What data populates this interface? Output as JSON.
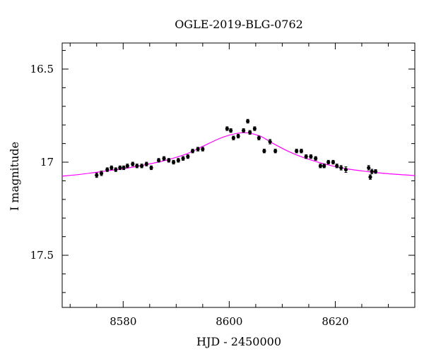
{
  "chart_data": {
    "type": "scatter",
    "title": "OGLE-2019-BLG-0762",
    "xlabel": "HJD - 2450000",
    "ylabel": "I magnitude",
    "xlim": [
      8568.5,
      8635
    ],
    "ylim": [
      16.36,
      17.78
    ],
    "y_inverted": true,
    "grid": false,
    "x_major_ticks": [
      8580,
      8600,
      8620
    ],
    "x_major_tick_labels": [
      "8580",
      "8600",
      "8620"
    ],
    "x_minor_step": 5,
    "y_major_ticks": [
      16.5,
      17,
      17.5
    ],
    "y_major_tick_labels": [
      "16.5",
      "17",
      "17.5"
    ],
    "y_minor_step": 0.1,
    "colors": {
      "data": "#000000",
      "model": "#ff00ff"
    },
    "series": [
      {
        "kind": "points",
        "x": [
          8575.0,
          8575.9,
          8577.0,
          8577.8,
          8578.6,
          8579.4,
          8580.1,
          8580.8,
          8581.8,
          8582.6,
          8583.5,
          8584.4,
          8585.3,
          8586.7,
          8587.7,
          8588.6,
          8589.5,
          8590.4,
          8591.3,
          8592.2,
          8593.1,
          8594.1,
          8595.0,
          8599.6,
          8600.3,
          8600.8,
          8601.7,
          8602.7,
          8603.5,
          8603.9,
          8604.8,
          8605.6,
          8606.6,
          8607.7,
          8608.7,
          8612.7,
          8613.6,
          8614.5,
          8615.4,
          8616.3,
          8617.2,
          8617.9,
          8618.7,
          8619.6,
          8620.3,
          8621.1,
          8622.0,
          8626.3,
          8626.6,
          8626.9,
          8627.6
        ],
        "y": [
          17.07,
          17.06,
          17.04,
          17.03,
          17.04,
          17.03,
          17.03,
          17.02,
          17.01,
          17.02,
          17.02,
          17.01,
          17.03,
          16.99,
          16.98,
          16.99,
          17.0,
          16.99,
          16.98,
          16.97,
          16.94,
          16.93,
          16.93,
          16.82,
          16.83,
          16.87,
          16.86,
          16.83,
          16.78,
          16.84,
          16.82,
          16.87,
          16.94,
          16.89,
          16.94,
          16.94,
          16.94,
          16.97,
          16.97,
          16.98,
          17.02,
          17.02,
          17.0,
          17.0,
          17.02,
          17.03,
          17.04,
          17.03,
          17.08,
          17.05,
          17.05
        ],
        "yerr": [
          0.012,
          0.012,
          0.01,
          0.01,
          0.01,
          0.01,
          0.01,
          0.01,
          0.01,
          0.01,
          0.01,
          0.01,
          0.01,
          0.01,
          0.01,
          0.01,
          0.01,
          0.01,
          0.01,
          0.01,
          0.01,
          0.01,
          0.01,
          0.01,
          0.01,
          0.01,
          0.01,
          0.01,
          0.01,
          0.01,
          0.01,
          0.01,
          0.01,
          0.012,
          0.01,
          0.01,
          0.01,
          0.01,
          0.01,
          0.01,
          0.01,
          0.01,
          0.01,
          0.01,
          0.01,
          0.012,
          0.015,
          0.012,
          0.012,
          0.012,
          0.01
        ]
      },
      {
        "kind": "model-curve",
        "x": [
          8568.5,
          8572,
          8576,
          8580,
          8584,
          8588,
          8592,
          8595,
          8598,
          8600,
          8602,
          8603,
          8604,
          8606,
          8608,
          8611,
          8614,
          8618,
          8622,
          8626,
          8630,
          8635
        ],
        "y": [
          17.075,
          17.065,
          17.05,
          17.035,
          17.015,
          16.99,
          16.955,
          16.915,
          16.875,
          16.855,
          16.843,
          16.842,
          16.845,
          16.862,
          16.895,
          16.94,
          16.975,
          17.01,
          17.035,
          17.05,
          17.062,
          17.072
        ]
      }
    ]
  }
}
